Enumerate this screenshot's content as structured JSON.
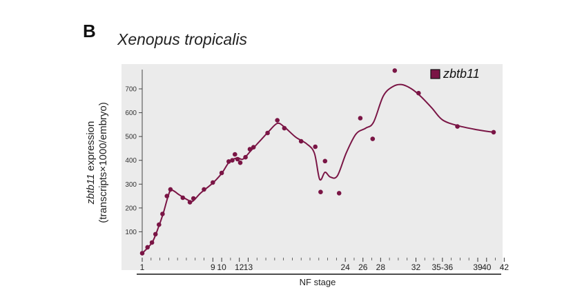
{
  "panel_letter": "B",
  "chart_data": {
    "type": "scatter",
    "title": "Xenopus tropicalis",
    "ylabel_gene": "zbtb11",
    "ylabel_rest": "expression",
    "ylabel_line2": "(transcripts×1000/embryo)",
    "xlabel": "NF stage",
    "ylim": [
      0,
      800
    ],
    "yticks": [
      100,
      200,
      300,
      400,
      500,
      600,
      700
    ],
    "xticks": [
      {
        "label": "1",
        "x": 1
      },
      {
        "label": "9",
        "x": 9
      },
      {
        "label": "10",
        "x": 10
      },
      {
        "label": "12",
        "x": 12
      },
      {
        "label": "13",
        "x": 13
      },
      {
        "label": "24",
        "x": 24
      },
      {
        "label": "26",
        "x": 26
      },
      {
        "label": "28",
        "x": 28
      },
      {
        "label": "32",
        "x": 32
      },
      {
        "label": "35-36",
        "x": 35
      },
      {
        "label": "39",
        "x": 39
      },
      {
        "label": "40",
        "x": 40
      },
      {
        "label": "42",
        "x": 42
      }
    ],
    "minor_ticks": [
      2,
      3,
      4,
      5,
      6,
      7,
      8,
      11,
      14,
      15,
      16,
      17,
      18,
      19,
      20,
      21,
      22,
      23,
      25,
      27,
      29,
      30,
      31,
      33,
      34,
      36,
      37,
      38,
      41
    ],
    "grid": false,
    "legend": {
      "label": "zbtb11",
      "placement": "top-right"
    },
    "color": "#7a1545",
    "background": "#ebebeb",
    "points": [
      [
        1.0,
        10
      ],
      [
        1.6,
        35
      ],
      [
        2.1,
        55
      ],
      [
        2.5,
        90
      ],
      [
        2.9,
        130
      ],
      [
        3.3,
        175
      ],
      [
        3.8,
        250
      ],
      [
        4.2,
        278
      ],
      [
        5.6,
        243
      ],
      [
        6.4,
        224
      ],
      [
        6.8,
        240
      ],
      [
        8.0,
        278
      ],
      [
        9.0,
        307
      ],
      [
        10.0,
        347
      ],
      [
        10.8,
        395
      ],
      [
        11.2,
        400
      ],
      [
        11.5,
        425
      ],
      [
        11.8,
        405
      ],
      [
        12.1,
        390
      ],
      [
        12.7,
        413
      ],
      [
        13.2,
        447
      ],
      [
        13.6,
        455
      ],
      [
        15.2,
        515
      ],
      [
        16.3,
        568
      ],
      [
        17.1,
        535
      ],
      [
        19.0,
        480
      ],
      [
        20.6,
        457
      ],
      [
        21.2,
        267
      ],
      [
        21.7,
        397
      ],
      [
        23.3,
        262
      ],
      [
        25.7,
        577
      ],
      [
        27.1,
        490
      ],
      [
        29.6,
        777
      ],
      [
        32.3,
        682
      ],
      [
        36.7,
        542
      ],
      [
        40.8,
        518
      ]
    ],
    "curve": [
      [
        1.0,
        10
      ],
      [
        1.6,
        32
      ],
      [
        2.2,
        60
      ],
      [
        2.8,
        115
      ],
      [
        3.4,
        180
      ],
      [
        3.9,
        245
      ],
      [
        4.3,
        275
      ],
      [
        5.2,
        255
      ],
      [
        6.1,
        235
      ],
      [
        6.7,
        228
      ],
      [
        7.6,
        262
      ],
      [
        9.0,
        305
      ],
      [
        10.0,
        345
      ],
      [
        10.9,
        395
      ],
      [
        11.8,
        410
      ],
      [
        12.4,
        405
      ],
      [
        13.3,
        440
      ],
      [
        14.3,
        480
      ],
      [
        15.3,
        520
      ],
      [
        16.3,
        555
      ],
      [
        17.1,
        540
      ],
      [
        18.4,
        497
      ],
      [
        19.6,
        470
      ],
      [
        20.5,
        430
      ],
      [
        21.1,
        320
      ],
      [
        21.7,
        350
      ],
      [
        22.3,
        330
      ],
      [
        23.1,
        335
      ],
      [
        24.1,
        430
      ],
      [
        25.2,
        510
      ],
      [
        26.3,
        535
      ],
      [
        27.2,
        560
      ],
      [
        28.3,
        670
      ],
      [
        29.4,
        710
      ],
      [
        30.4,
        718
      ],
      [
        31.5,
        700
      ],
      [
        32.5,
        670
      ],
      [
        33.8,
        620
      ],
      [
        35.0,
        570
      ],
      [
        36.8,
        545
      ],
      [
        39.0,
        528
      ],
      [
        40.8,
        518
      ]
    ]
  }
}
